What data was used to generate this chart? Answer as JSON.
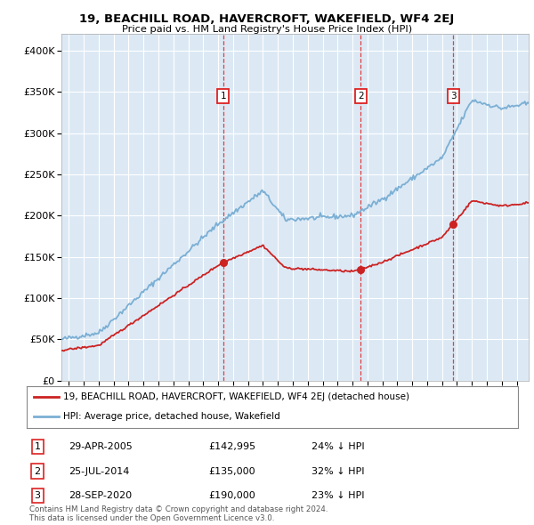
{
  "title": "19, BEACHILL ROAD, HAVERCROFT, WAKEFIELD, WF4 2EJ",
  "subtitle": "Price paid vs. HM Land Registry's House Price Index (HPI)",
  "bg_color": "#dce9f5",
  "red_line_label": "19, BEACHILL ROAD, HAVERCROFT, WAKEFIELD, WF4 2EJ (detached house)",
  "blue_line_label": "HPI: Average price, detached house, Wakefield",
  "transactions": [
    {
      "num": 1,
      "date": "29-APR-2005",
      "price": 142995,
      "pct": "24%",
      "dir": "↓",
      "year": 2005.33
    },
    {
      "num": 2,
      "date": "25-JUL-2014",
      "price": 135000,
      "pct": "32%",
      "dir": "↓",
      "year": 2014.56
    },
    {
      "num": 3,
      "date": "28-SEP-2020",
      "price": 190000,
      "pct": "23%",
      "dir": "↓",
      "year": 2020.75
    }
  ],
  "footer": "Contains HM Land Registry data © Crown copyright and database right 2024.\nThis data is licensed under the Open Government Licence v3.0.",
  "ylim": [
    0,
    420000
  ],
  "yticks": [
    0,
    50000,
    100000,
    150000,
    200000,
    250000,
    300000,
    350000,
    400000
  ],
  "ytick_labels": [
    "£0",
    "£50K",
    "£100K",
    "£150K",
    "£200K",
    "£250K",
    "£300K",
    "£350K",
    "£400K"
  ],
  "xlim_start": 1994.5,
  "xlim_end": 2025.8
}
